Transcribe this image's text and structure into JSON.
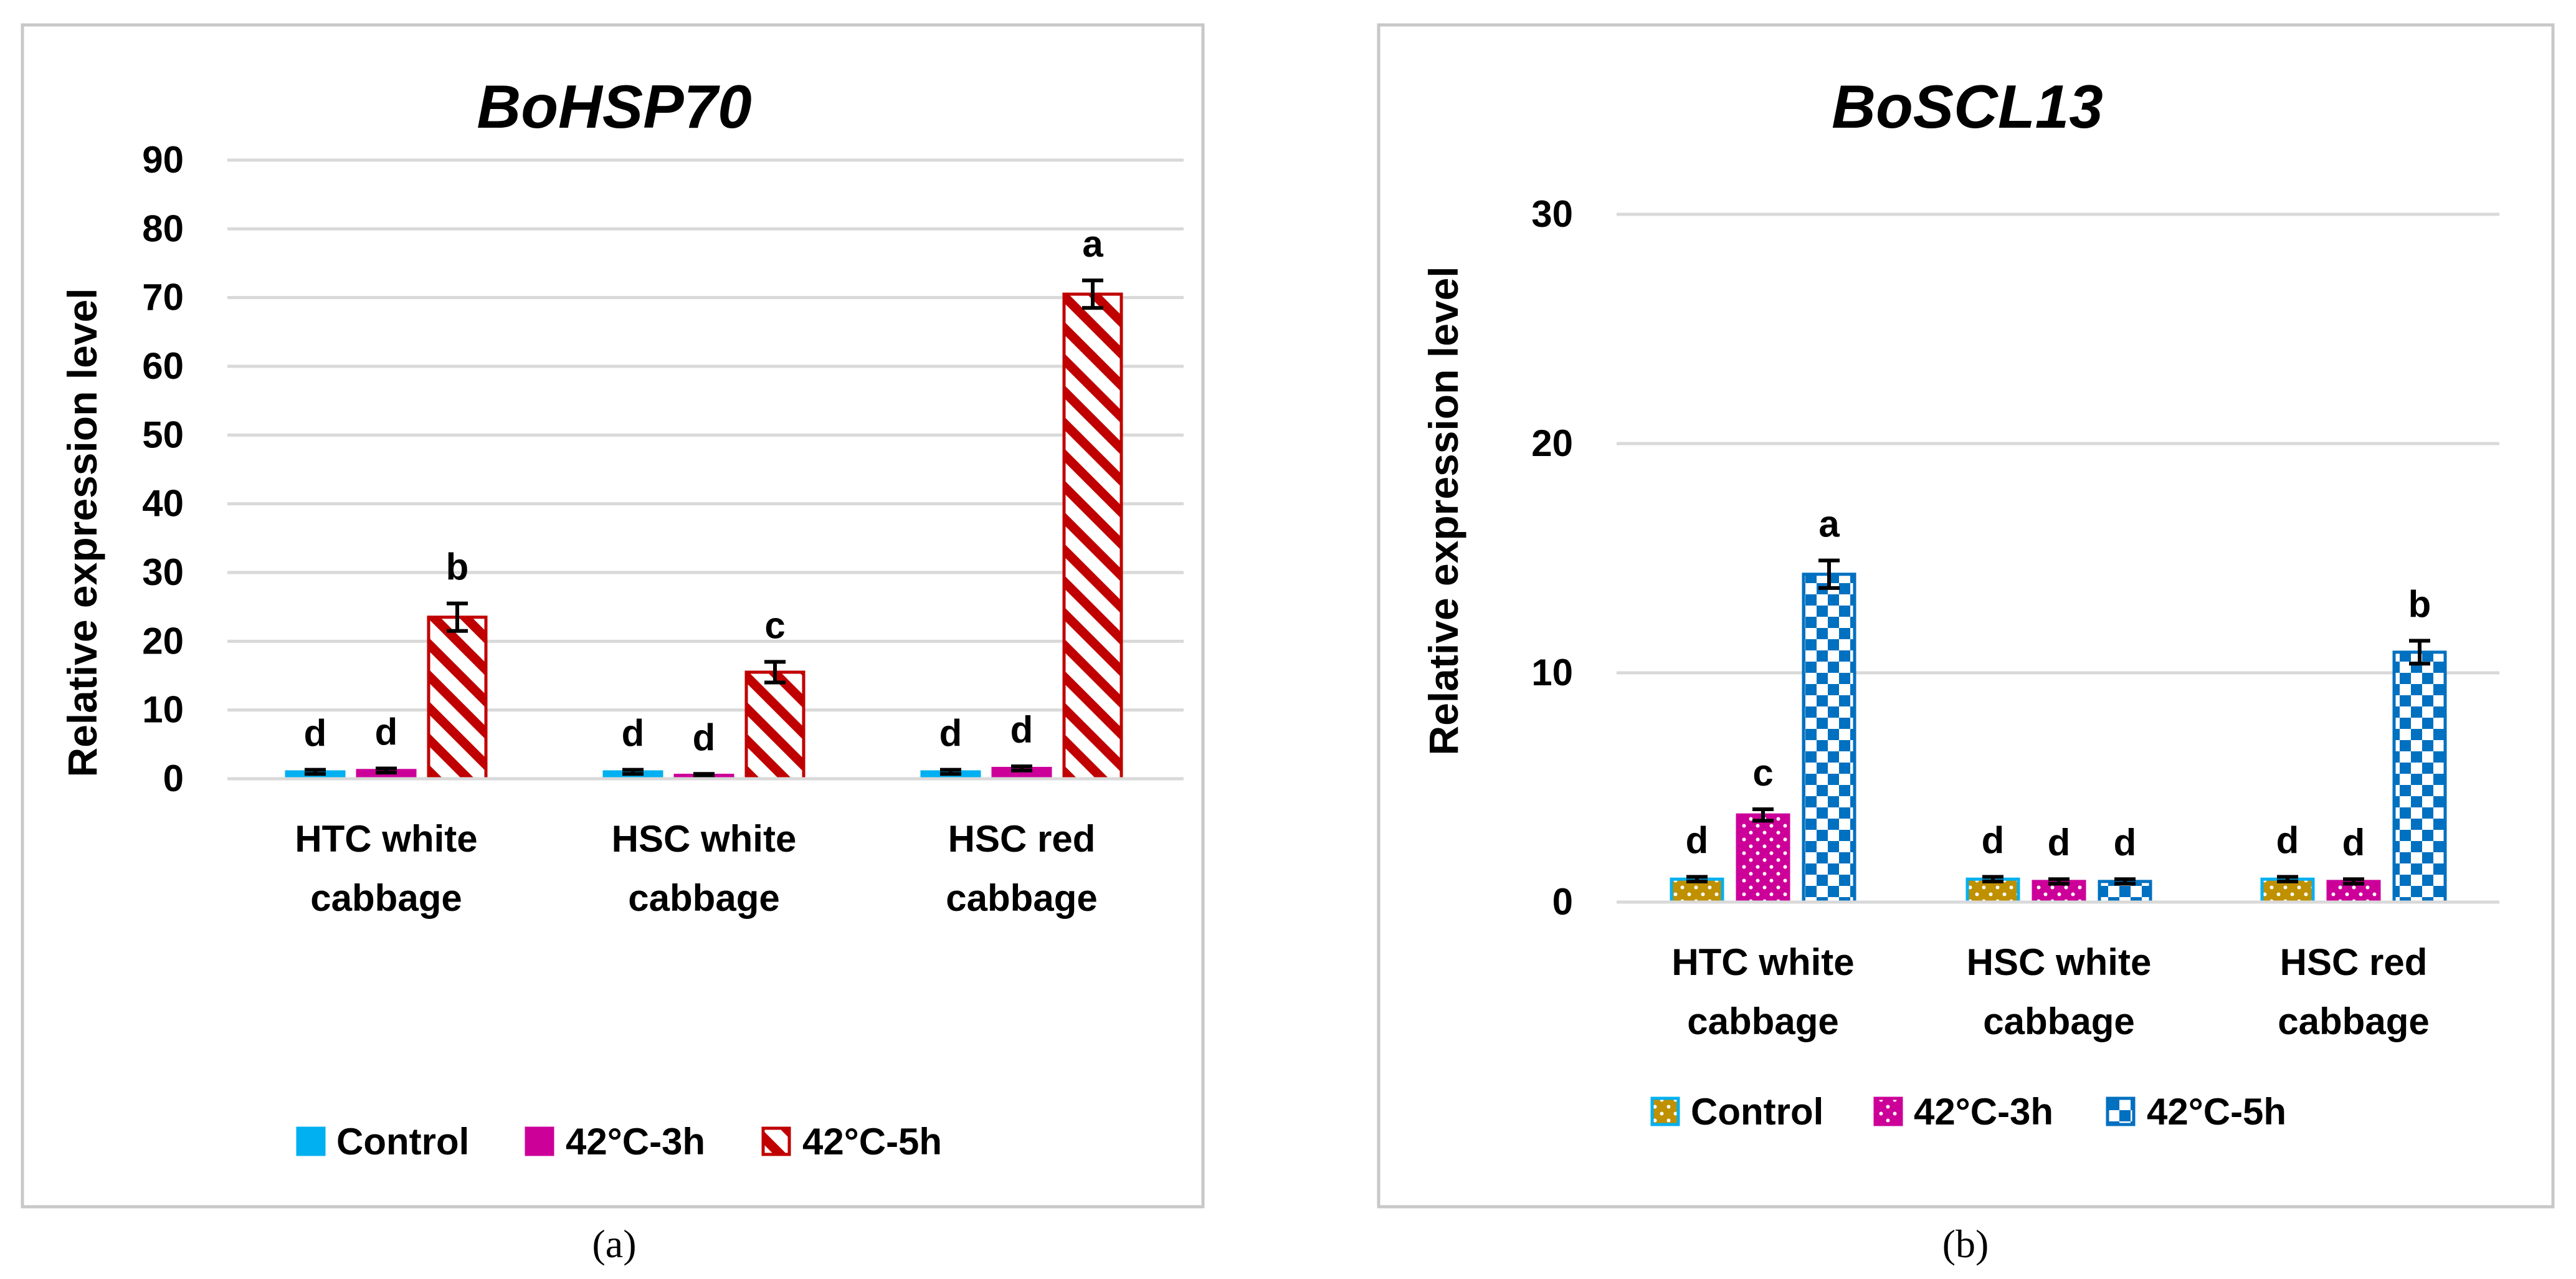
{
  "chart_data": [
    {
      "type": "bar",
      "panel_label": "(a)",
      "title": "BoHSP70",
      "ylabel": "Relative expression level",
      "xlabel": "",
      "ylim": [
        0,
        90
      ],
      "yticks": [
        0,
        10,
        20,
        30,
        40,
        50,
        60,
        70,
        80,
        90
      ],
      "categories": [
        [
          "HTC white",
          "cabbage"
        ],
        [
          "HSC white",
          "cabbage"
        ],
        [
          "HSC red",
          "cabbage"
        ]
      ],
      "series": [
        {
          "name": "Control",
          "values": [
            1.0,
            1.0,
            1.0
          ],
          "errors": [
            0.3,
            0.3,
            0.3
          ],
          "letters": [
            "d",
            "d",
            "d"
          ],
          "color": "#00B0F0",
          "edge": "#00B0F0",
          "pattern": "solid"
        },
        {
          "name": "42°C-3h",
          "values": [
            1.2,
            0.5,
            1.5
          ],
          "errors": [
            0.3,
            0.2,
            0.3
          ],
          "letters": [
            "d",
            "d",
            "d"
          ],
          "color": "#CC0099",
          "edge": "#CC0099",
          "pattern": "solid"
        },
        {
          "name": "42°C-5h",
          "values": [
            23.5,
            15.5,
            70.5
          ],
          "errors": [
            2.0,
            1.5,
            2.0
          ],
          "letters": [
            "b",
            "c",
            "a"
          ],
          "color": "#C00000",
          "edge": "#C00000",
          "pattern": "diag"
        }
      ],
      "legend_position": "bottom"
    },
    {
      "type": "bar",
      "panel_label": "(b)",
      "title": "BoSCL13",
      "ylabel": "Relative expression level",
      "xlabel": "",
      "ylim": [
        0,
        30
      ],
      "yticks": [
        0,
        10,
        20,
        30
      ],
      "categories": [
        [
          "HTC white",
          "cabbage"
        ],
        [
          "HSC white",
          "cabbage"
        ],
        [
          "HSC red",
          "cabbage"
        ]
      ],
      "series": [
        {
          "name": "Control",
          "values": [
            1.0,
            1.0,
            1.0
          ],
          "errors": [
            0.1,
            0.1,
            0.1
          ],
          "letters": [
            "d",
            "d",
            "d"
          ],
          "color": "#BF9000",
          "edge": "#00B0F0",
          "pattern": "dots"
        },
        {
          "name": "42°C-3h",
          "values": [
            3.8,
            0.9,
            0.9
          ],
          "errors": [
            0.25,
            0.1,
            0.1
          ],
          "letters": [
            "c",
            "d",
            "d"
          ],
          "color": "#CC0099",
          "edge": "#CC0099",
          "pattern": "dots"
        },
        {
          "name": "42°C-5h",
          "values": [
            14.3,
            0.9,
            10.9
          ],
          "errors": [
            0.6,
            0.1,
            0.5
          ],
          "letters": [
            "a",
            "d",
            "b"
          ],
          "color": "#0070C0",
          "edge": "#0070C0",
          "pattern": "checker"
        }
      ],
      "legend_position": "bottom"
    }
  ]
}
